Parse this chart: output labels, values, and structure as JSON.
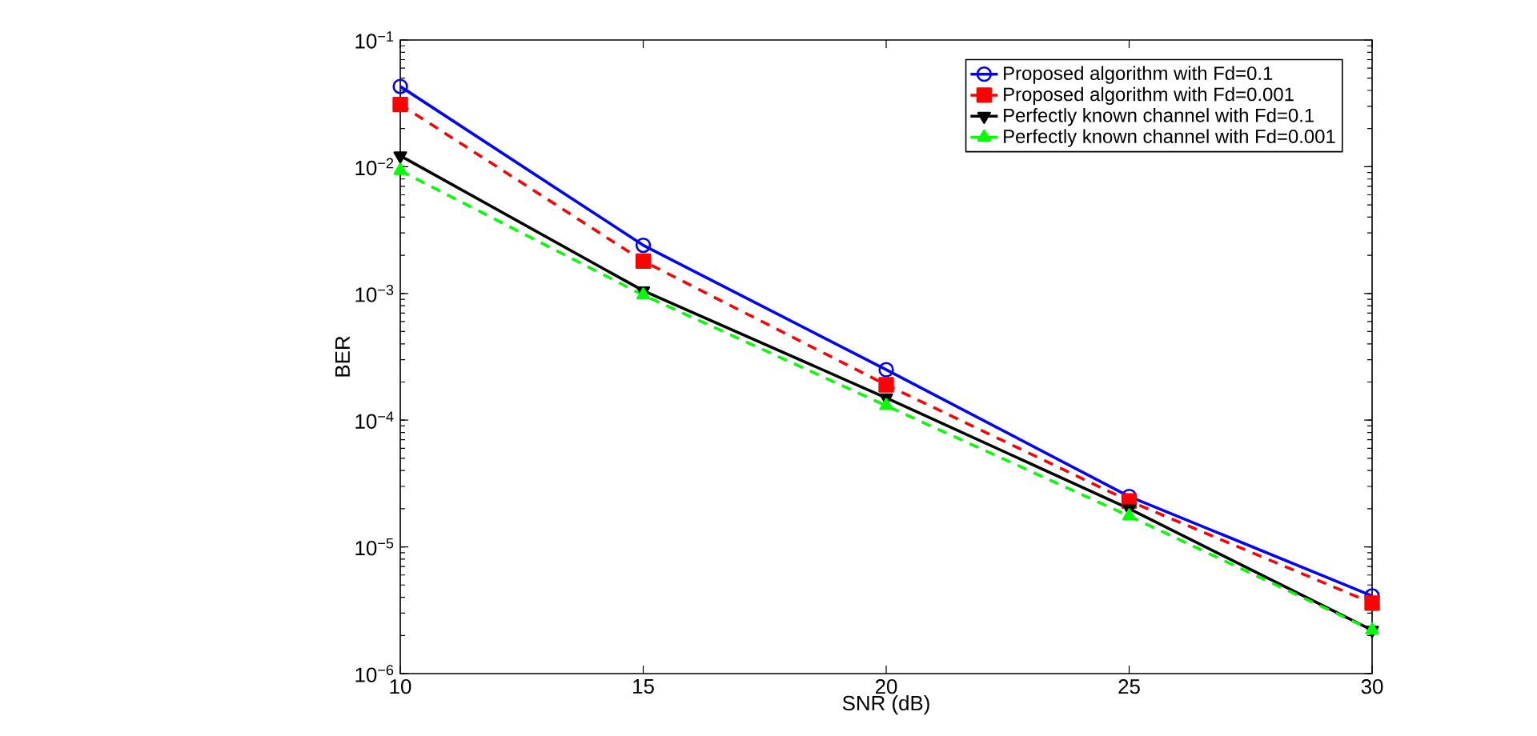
{
  "chart_data": {
    "type": "line",
    "xlabel": "SNR (dB)",
    "ylabel": "BER",
    "log": "y",
    "legend": "top right",
    "grid": false,
    "x": [
      10,
      15,
      20,
      25,
      30
    ],
    "xlim": [
      10,
      30
    ],
    "xticks": [
      10,
      15,
      20,
      25,
      30
    ],
    "ylim": [
      1e-06,
      0.1
    ],
    "yticks": [
      {
        "value": 1e-06,
        "label": "10$^{−6}$"
      },
      {
        "value": 1e-05,
        "label": "10$^{−5}$"
      },
      {
        "value": 0.0001,
        "label": "10$^{−4}$"
      },
      {
        "value": 0.001,
        "label": "10$^{−3}$"
      },
      {
        "value": 0.01,
        "label": "10$^{−2}$"
      },
      {
        "value": 0.1,
        "label": "10$^{−1}$"
      }
    ],
    "series": [
      {
        "name": "Proposed algorithm with Fd=0.1",
        "color": "#0000ff",
        "marker": "circle",
        "line_style": "solid",
        "values": [
          0.043,
          0.0024,
          0.00025,
          2.5e-05,
          4.1e-06
        ]
      },
      {
        "name": "Proposed algorithm with Fd=0.001",
        "color": "#ff0000",
        "marker": "square",
        "line_style": "dashed",
        "values": [
          0.031,
          0.0018,
          0.00019,
          2.3e-05,
          3.6e-06
        ]
      },
      {
        "name": "Perfectly known channel with Fd=0.1",
        "color": "#000000",
        "marker": "triangle-down",
        "line_style": "solid",
        "values": [
          0.0122,
          0.00105,
          0.00015,
          2e-05,
          2.2e-06
        ]
      },
      {
        "name": "Perfectly known channel with Fd=0.001",
        "color": "#00ff00",
        "marker": "triangle",
        "line_style": "dashed",
        "values": [
          0.0093,
          0.00097,
          0.00013,
          1.75e-05,
          2.2e-06
        ]
      }
    ]
  }
}
